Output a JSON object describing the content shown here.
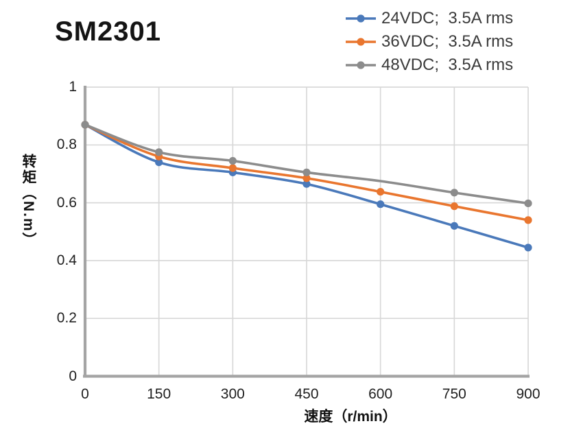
{
  "page": {
    "background": "#FFFFFF"
  },
  "chart_data": {
    "type": "line",
    "title": "SM2301",
    "xlabel": "速度（r/min）",
    "ylabel": "转矩（N.m）",
    "x": [
      0,
      150,
      300,
      450,
      600,
      750,
      900
    ],
    "x_ticks": [
      0,
      150,
      300,
      450,
      600,
      750,
      900
    ],
    "y_ticks": [
      0,
      0.2,
      0.4,
      0.6,
      0.8,
      1
    ],
    "xlim": [
      0,
      900
    ],
    "ylim": [
      0,
      1
    ],
    "grid": true,
    "line_style": "smooth",
    "markers": true,
    "legend_position": "top-right",
    "series": [
      {
        "key": "24vdc",
        "name": "24VDC;  3.5A rms",
        "color": "#4A79BA",
        "values": [
          0.87,
          0.74,
          0.705,
          0.665,
          0.595,
          0.52,
          0.445
        ]
      },
      {
        "key": "36vdc",
        "name": "36VDC;  3.5A rms",
        "color": "#E9762F",
        "values": [
          0.87,
          0.76,
          0.72,
          0.685,
          0.638,
          0.588,
          0.54
        ]
      },
      {
        "key": "48vdc",
        "name": "48VDC;  3.5A rms",
        "color": "#8C8C8C",
        "values": [
          0.87,
          0.775,
          0.745,
          0.705,
          0.675,
          0.635,
          0.598
        ],
        "no_marker_x": [
          600
        ]
      }
    ],
    "colors": {
      "gridline": "#D8D8D8",
      "axis": "#A4A4A4",
      "tick_text": "#202020",
      "legend_text": "#3A3A3A",
      "title_text": "#141414",
      "axis_label_text": "#111111"
    }
  }
}
